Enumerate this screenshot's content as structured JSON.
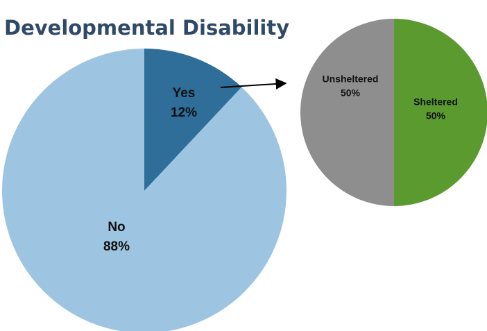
{
  "chart_data": [
    {
      "type": "pie",
      "title": "Developmental Disability",
      "categories": [
        "Yes",
        "No"
      ],
      "values": [
        12,
        88
      ],
      "value_labels": [
        "12%",
        "88%"
      ],
      "colors": [
        "#2e6e99",
        "#9dc5e2"
      ]
    },
    {
      "type": "pie",
      "categories": [
        "Sheltered",
        "Unsheltered"
      ],
      "values": [
        50,
        50
      ],
      "value_labels": [
        "50%",
        "50%"
      ],
      "colors": [
        "#5b9a2f",
        "#8e8e8e"
      ]
    }
  ]
}
